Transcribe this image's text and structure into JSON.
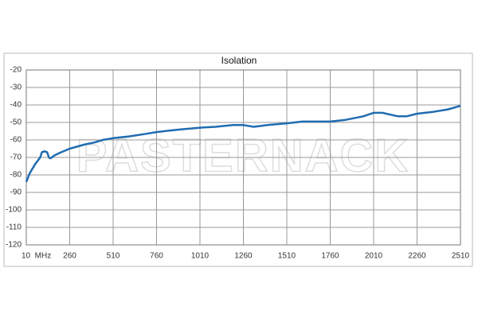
{
  "chart_data": {
    "type": "line",
    "title": "Isolation",
    "watermark": "PASTERNACK",
    "x": [
      10,
      30,
      60,
      90,
      100,
      115,
      130,
      140,
      150,
      170,
      200,
      260,
      350,
      400,
      450,
      510,
      600,
      700,
      760,
      850,
      900,
      1010,
      1100,
      1200,
      1260,
      1320,
      1400,
      1510,
      1600,
      1760,
      1850,
      1950,
      2010,
      2060,
      2150,
      2200,
      2260,
      2350,
      2440,
      2510
    ],
    "series": [
      {
        "name": "Isolation",
        "color": "#1f6cb0",
        "values": [
          -84,
          -79,
          -74,
          -70,
          -67,
          -66.5,
          -67,
          -70,
          -70.5,
          -69,
          -67.5,
          -65,
          -62.5,
          -61.5,
          -60,
          -59,
          -58,
          -56.5,
          -55.5,
          -54.5,
          -54,
          -53,
          -52.5,
          -51.5,
          -51.5,
          -52.5,
          -51.5,
          -50.5,
          -49.5,
          -49.5,
          -48.5,
          -46.5,
          -44.5,
          -44.5,
          -46.5,
          -46.5,
          -45,
          -44,
          -42.5,
          -40.5
        ]
      }
    ],
    "xlim": [
      10,
      2510
    ],
    "xticks": [
      {
        "value": 10,
        "label": "10  MHz"
      },
      260,
      510,
      760,
      1010,
      1260,
      1510,
      1760,
      2010,
      2260,
      2510
    ],
    "ylim": [
      -120,
      -20
    ],
    "yticks": [
      -120,
      -110,
      -100,
      -90,
      -80,
      -70,
      -60,
      -50,
      -40,
      -30,
      -20
    ],
    "grid": true
  }
}
